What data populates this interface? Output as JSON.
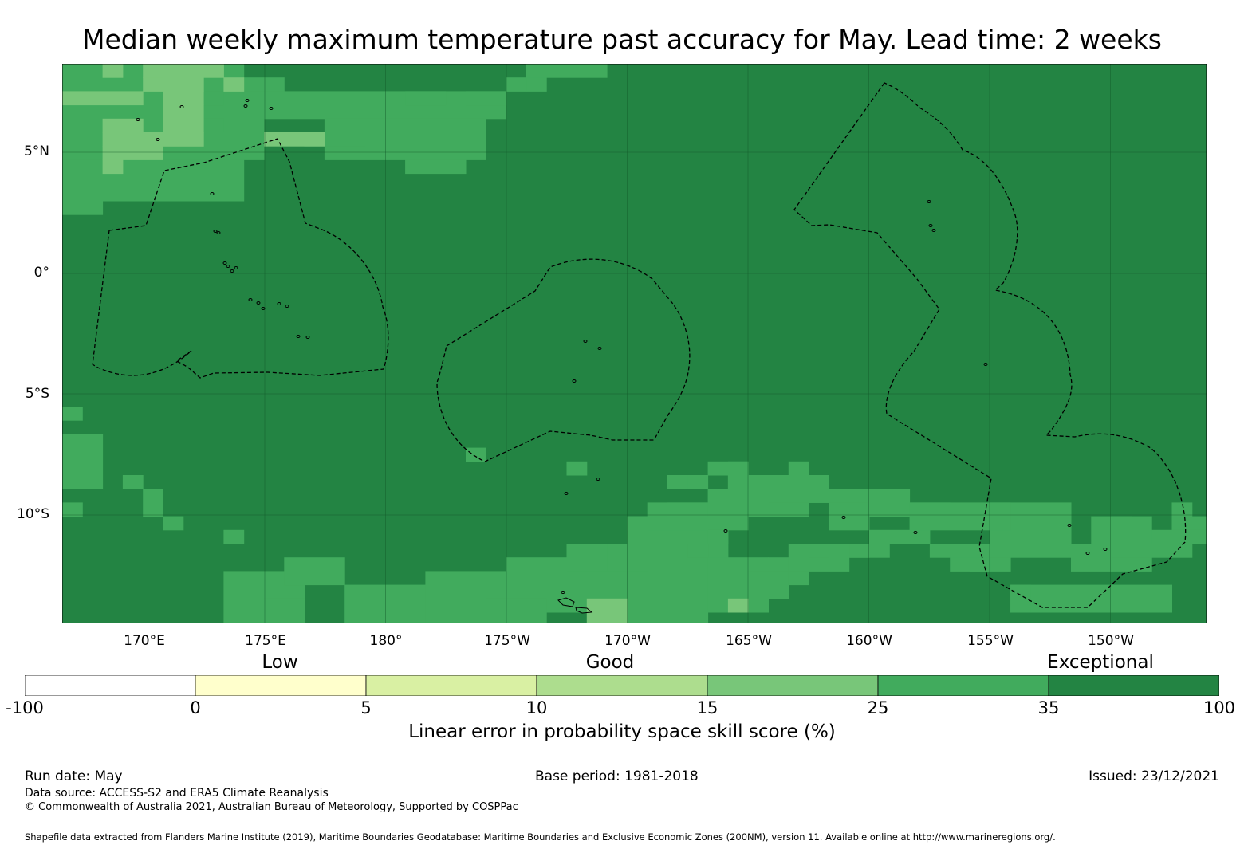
{
  "title": "Median weekly maximum temperature past accuracy for May. Lead time: 2 weeks",
  "map": {
    "lat_ticks": [
      "5°N",
      "0°",
      "5°S",
      "10°S"
    ],
    "lon_ticks": [
      "170°E",
      "175°E",
      "180°",
      "175°W",
      "170°W",
      "165°W",
      "160°W",
      "155°W",
      "150°W"
    ],
    "background_color": "#238443",
    "grid_color": "#145a2a"
  },
  "colorbar": {
    "category_labels": [
      "Low",
      "Good",
      "Exceptional"
    ],
    "boundaries": [
      "-100",
      "0",
      "5",
      "10",
      "15",
      "25",
      "35",
      "100"
    ],
    "colors": [
      "#ffffff",
      "#ffffcc",
      "#d9f0a3",
      "#addd8e",
      "#78c679",
      "#41ab5d",
      "#238443"
    ],
    "label": "Linear error in probability space skill score (%)"
  },
  "footer": {
    "run_date": "Run date: May",
    "base_period": "Base period: 1981-2018",
    "issued": "Issued: 23/12/2021",
    "data_source": "Data source: ACCESS-S2 and ERA5 Climate Reanalysis",
    "copyright": "© Commonwealth of Australia 2021, Australian Bureau of Meteorology, Supported by COSPPac",
    "shapefile_note": "Shapefile data extracted from Flanders Marine Institute (2019), Maritime Boundaries Geodatabase: Maritime Boundaries and Exclusive Economic Zones (200NM), version 11. Available online at http://www.marineregions.org/."
  }
}
